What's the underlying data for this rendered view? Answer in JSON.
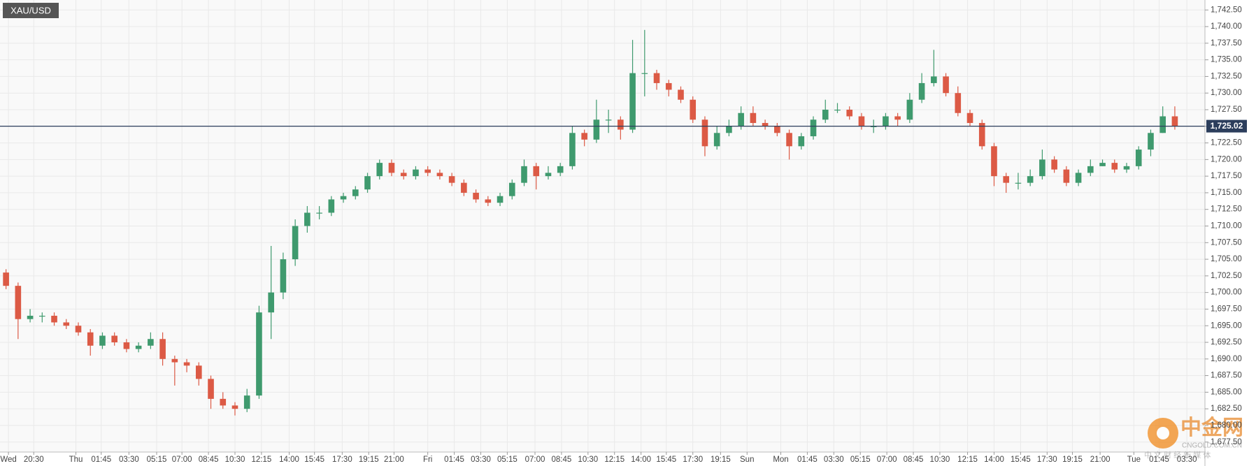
{
  "chart_data": {
    "type": "candlestick",
    "title": "XAU/USD",
    "up_color": "#3f9a6e",
    "down_color": "#dc5a45",
    "grid": true,
    "xlim": [
      0,
      100
    ],
    "ylim": [
      1676,
      1744
    ],
    "xticks": [
      {
        "value": 0.7,
        "label": "Wed"
      },
      {
        "value": 2.8,
        "label": "20:30"
      },
      {
        "value": 6.3,
        "label": "Thu"
      },
      {
        "value": 8.4,
        "label": "01:45"
      },
      {
        "value": 10.7,
        "label": "03:30"
      },
      {
        "value": 13.0,
        "label": "05:15"
      },
      {
        "value": 15.1,
        "label": "07:00"
      },
      {
        "value": 17.3,
        "label": "08:45"
      },
      {
        "value": 19.5,
        "label": "10:30"
      },
      {
        "value": 21.7,
        "label": "12:15"
      },
      {
        "value": 24.0,
        "label": "14:00"
      },
      {
        "value": 26.1,
        "label": "15:45"
      },
      {
        "value": 28.4,
        "label": "17:30"
      },
      {
        "value": 30.6,
        "label": "19:15"
      },
      {
        "value": 32.7,
        "label": "21:00"
      },
      {
        "value": 35.5,
        "label": "Fri"
      },
      {
        "value": 37.7,
        "label": "01:45"
      },
      {
        "value": 39.9,
        "label": "03:30"
      },
      {
        "value": 42.1,
        "label": "05:15"
      },
      {
        "value": 44.4,
        "label": "07:00"
      },
      {
        "value": 46.6,
        "label": "08:45"
      },
      {
        "value": 48.8,
        "label": "10:30"
      },
      {
        "value": 51.0,
        "label": "12:15"
      },
      {
        "value": 53.2,
        "label": "14:00"
      },
      {
        "value": 55.3,
        "label": "15:45"
      },
      {
        "value": 57.5,
        "label": "17:30"
      },
      {
        "value": 59.8,
        "label": "19:15"
      },
      {
        "value": 62.0,
        "label": "Sun"
      },
      {
        "value": 64.8,
        "label": "Mon"
      },
      {
        "value": 67.0,
        "label": "01:45"
      },
      {
        "value": 69.2,
        "label": "03:30"
      },
      {
        "value": 71.4,
        "label": "05:15"
      },
      {
        "value": 73.6,
        "label": "07:00"
      },
      {
        "value": 75.8,
        "label": "08:45"
      },
      {
        "value": 78.0,
        "label": "10:30"
      },
      {
        "value": 80.3,
        "label": "12:15"
      },
      {
        "value": 82.5,
        "label": "14:00"
      },
      {
        "value": 84.7,
        "label": "15:45"
      },
      {
        "value": 86.9,
        "label": "17:30"
      },
      {
        "value": 89.0,
        "label": "19:15"
      },
      {
        "value": 91.3,
        "label": "21:00"
      },
      {
        "value": 94.1,
        "label": "Tue"
      },
      {
        "value": 96.2,
        "label": "01:45"
      },
      {
        "value": 98.5,
        "label": "03:30"
      }
    ],
    "yticks": [
      {
        "value": 1677.5,
        "label": "1,677.50"
      },
      {
        "value": 1680,
        "label": "1,680.00"
      },
      {
        "value": 1682.5,
        "label": "1,682.50"
      },
      {
        "value": 1685,
        "label": "1,685.00"
      },
      {
        "value": 1687.5,
        "label": "1,687.50"
      },
      {
        "value": 1690,
        "label": "1,690.00"
      },
      {
        "value": 1692.5,
        "label": "1,692.50"
      },
      {
        "value": 1695,
        "label": "1,695.00"
      },
      {
        "value": 1697.5,
        "label": "1,697.50"
      },
      {
        "value": 1700,
        "label": "1,700.00"
      },
      {
        "value": 1702.5,
        "label": "1,702.50"
      },
      {
        "value": 1705,
        "label": "1,705.00"
      },
      {
        "value": 1707.5,
        "label": "1,707.50"
      },
      {
        "value": 1710,
        "label": "1,710.00"
      },
      {
        "value": 1712.5,
        "label": "1,712.50"
      },
      {
        "value": 1715,
        "label": "1,715.00"
      },
      {
        "value": 1717.5,
        "label": "1,717.50"
      },
      {
        "value": 1720,
        "label": "1,720.00"
      },
      {
        "value": 1722.5,
        "label": "1,722.50"
      },
      {
        "value": 1725,
        "label": "1,725.00"
      },
      {
        "value": 1727.5,
        "label": "1,727.50"
      },
      {
        "value": 1730,
        "label": "1,730.00"
      },
      {
        "value": 1732.5,
        "label": "1,732.50"
      },
      {
        "value": 1735,
        "label": "1,735.00"
      },
      {
        "value": 1737.5,
        "label": "1,737.50"
      },
      {
        "value": 1740,
        "label": "1,740.00"
      },
      {
        "value": 1742.5,
        "label": "1,742.50"
      }
    ],
    "last_price": {
      "value": 1725.02,
      "label": "1,725.02",
      "color": "#2c3e5c"
    },
    "open": [
      1703,
      1701,
      1696,
      1696.5,
      1696.5,
      1695.5,
      1695,
      1694,
      1692,
      1693.5,
      1692.5,
      1691.5,
      1692,
      1693,
      1690,
      1689.5,
      1689,
      1687,
      1684,
      1683,
      1682.5,
      1684.5,
      1697,
      1700,
      1705,
      1710,
      1712,
      1712,
      1714,
      1714.5,
      1715.5,
      1717.5,
      1719.5,
      1718,
      1717.5,
      1718.5,
      1718,
      1717.5,
      1716.5,
      1715,
      1714,
      1713.5,
      1714.5,
      1716.5,
      1719,
      1717.5,
      1718,
      1719,
      1724,
      1723,
      1726,
      1726,
      1724.5,
      1733,
      1733,
      1731.5,
      1730.5,
      1729,
      1726,
      1722,
      1724,
      1725,
      1727,
      1725.5,
      1725,
      1724,
      1722,
      1723.5,
      1726,
      1727.5,
      1727.5,
      1726.5,
      1725,
      1725,
      1726.5,
      1726,
      1729,
      1731.5,
      1732.5,
      1730,
      1727,
      1725.5,
      1722,
      1717.5,
      1716.5,
      1716.5,
      1717.5,
      1720,
      1718.5,
      1716.5,
      1718,
      1719,
      1719.5,
      1718.5,
      1719,
      1721.5,
      1724,
      1726.5
    ],
    "high": [
      1703.5,
      1701.5,
      1697.5,
      1697,
      1697,
      1696,
      1695.5,
      1694.5,
      1694,
      1694,
      1693,
      1692.5,
      1694,
      1694,
      1690.5,
      1690,
      1689.5,
      1687.5,
      1685,
      1683.5,
      1685.5,
      1698,
      1707,
      1706,
      1711,
      1713,
      1713,
      1714.5,
      1715,
      1716,
      1718,
      1720,
      1720,
      1718.5,
      1719,
      1719,
      1718.5,
      1718,
      1717,
      1715.5,
      1714.5,
      1715,
      1717,
      1720,
      1719.5,
      1719,
      1719.5,
      1725,
      1724.5,
      1729,
      1727.5,
      1726.5,
      1738,
      1739.5,
      1733.5,
      1732,
      1731,
      1729.5,
      1726.5,
      1725,
      1726,
      1728,
      1728,
      1726,
      1725.5,
      1724.5,
      1724,
      1726.5,
      1729,
      1728.5,
      1728,
      1727,
      1726,
      1727,
      1727,
      1730,
      1733,
      1736.5,
      1733,
      1731,
      1727.5,
      1726,
      1722.5,
      1718,
      1718,
      1718.5,
      1721.5,
      1720.5,
      1719,
      1718.5,
      1720,
      1720,
      1720,
      1719.5,
      1722,
      1724.5,
      1728,
      1728
    ],
    "low": [
      1700.5,
      1693,
      1695.5,
      1695.5,
      1695,
      1694.5,
      1693.5,
      1690.5,
      1691.5,
      1692,
      1691,
      1691,
      1691.5,
      1689,
      1686,
      1688,
      1686,
      1682.5,
      1682.5,
      1681.5,
      1682,
      1684,
      1693,
      1699,
      1704,
      1709,
      1711,
      1711.5,
      1713.5,
      1714,
      1715,
      1717,
      1717.5,
      1717,
      1717,
      1717.5,
      1717,
      1716,
      1714.5,
      1713.5,
      1713,
      1713,
      1714,
      1716,
      1715.5,
      1717,
      1717.5,
      1718.5,
      1722,
      1722.5,
      1724,
      1723,
      1724,
      1729.5,
      1730.5,
      1729.5,
      1728.5,
      1725.5,
      1720.5,
      1721.5,
      1723.5,
      1724.5,
      1725,
      1724.5,
      1723.5,
      1720,
      1721.5,
      1723,
      1725.5,
      1727,
      1726,
      1724.5,
      1724,
      1724.5,
      1725,
      1725.5,
      1728.5,
      1731,
      1729.5,
      1726.5,
      1725,
      1721.5,
      1716,
      1715,
      1715.5,
      1716,
      1717,
      1718,
      1716,
      1716,
      1717.5,
      1719,
      1718,
      1718,
      1718.5,
      1720.5,
      1724,
      1724.5
    ],
    "close": [
      1701,
      1696,
      1696.5,
      1696.5,
      1695.5,
      1695,
      1694,
      1692,
      1693.5,
      1692.5,
      1691.5,
      1692,
      1693,
      1690,
      1689.5,
      1689,
      1687,
      1684,
      1683,
      1682.5,
      1684.5,
      1697,
      1700,
      1705,
      1710,
      1712,
      1712,
      1714,
      1714.5,
      1715.5,
      1717.5,
      1719.5,
      1718,
      1717.5,
      1718.5,
      1718,
      1717.5,
      1716.5,
      1715,
      1714,
      1713.5,
      1714.5,
      1716.5,
      1719,
      1717.5,
      1718,
      1719,
      1724,
      1723,
      1726,
      1726,
      1724.5,
      1733,
      1733,
      1731.5,
      1730.5,
      1729,
      1726,
      1722,
      1724,
      1725,
      1727,
      1725.5,
      1725,
      1724,
      1722,
      1723.5,
      1726,
      1727.5,
      1727.5,
      1726.5,
      1725,
      1725,
      1726.5,
      1726,
      1729,
      1731.5,
      1732.5,
      1730,
      1727,
      1725.5,
      1722,
      1717.5,
      1716.5,
      1716.5,
      1717.5,
      1720,
      1718.5,
      1716.5,
      1718,
      1719,
      1719.5,
      1718.5,
      1719,
      1721.5,
      1724,
      1726.5,
      1725
    ]
  },
  "watermark": {
    "brand": "中金网",
    "site": "CNGOLD.COM.CN",
    "slogan": "中 文 财 经 新 媒 体"
  }
}
